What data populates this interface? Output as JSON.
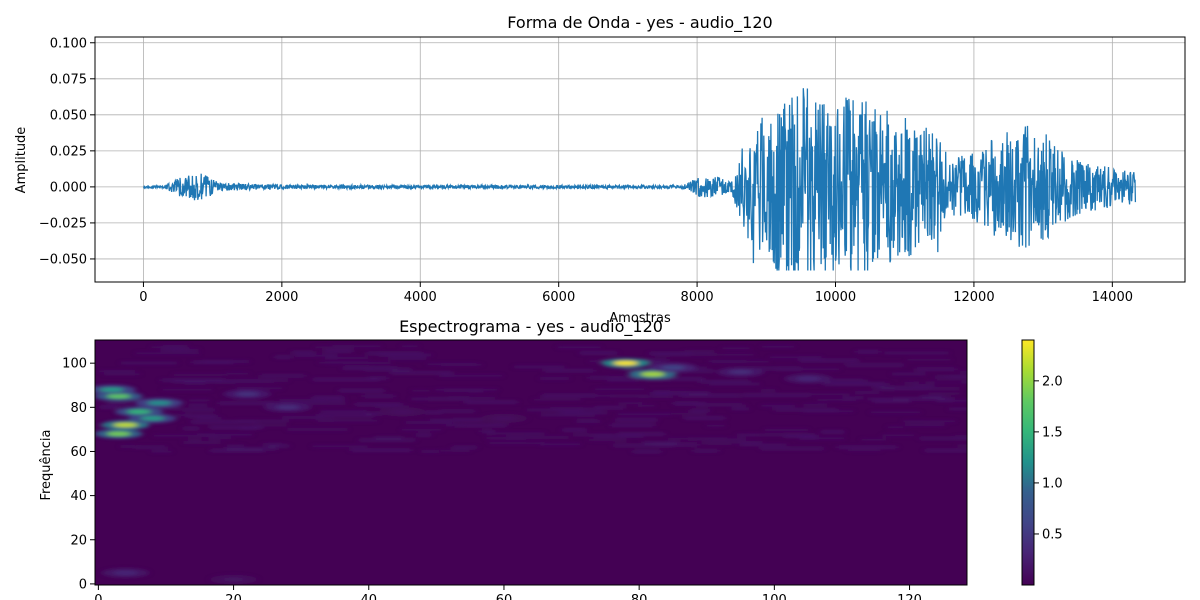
{
  "chart_data": [
    {
      "type": "line",
      "title": "Forma de Onda - yes - audio_120",
      "xlabel": "Amostras",
      "ylabel": "Amplitude",
      "xlim": [
        -700,
        15050
      ],
      "ylim": [
        -0.066,
        0.104
      ],
      "x_ticks": [
        0,
        2000,
        4000,
        6000,
        8000,
        10000,
        12000,
        14000
      ],
      "y_ticks": [
        -0.05,
        -0.025,
        0.0,
        0.025,
        0.05,
        0.075,
        0.1
      ],
      "x_tick_labels": [
        "0",
        "2000",
        "4000",
        "6000",
        "8000",
        "10000",
        "12000",
        "14000"
      ],
      "y_tick_labels": [
        "−0.050",
        "−0.025",
        "0.000",
        "0.025",
        "0.050",
        "0.075",
        "0.100"
      ],
      "grid": true,
      "line_color": "#1f77b4",
      "n_samples": 14336,
      "envelope": [
        [
          0,
          0.0008
        ],
        [
          300,
          0.0008
        ],
        [
          450,
          0.005
        ],
        [
          600,
          0.008
        ],
        [
          800,
          0.01
        ],
        [
          950,
          0.007
        ],
        [
          1100,
          0.003
        ],
        [
          1300,
          0.0025
        ],
        [
          2000,
          0.0015
        ],
        [
          4000,
          0.0012
        ],
        [
          6000,
          0.0012
        ],
        [
          7800,
          0.0012
        ],
        [
          8000,
          0.007
        ],
        [
          8200,
          0.008
        ],
        [
          8500,
          0.004
        ],
        [
          8700,
          0.035
        ],
        [
          8900,
          0.045
        ],
        [
          9100,
          0.06
        ],
        [
          9400,
          0.075
        ],
        [
          9700,
          0.065
        ],
        [
          10000,
          0.06
        ],
        [
          10300,
          0.065
        ],
        [
          10600,
          0.055
        ],
        [
          11000,
          0.05
        ],
        [
          11400,
          0.04
        ],
        [
          11700,
          0.02
        ],
        [
          12000,
          0.025
        ],
        [
          12300,
          0.035
        ],
        [
          12600,
          0.045
        ],
        [
          13000,
          0.04
        ],
        [
          13300,
          0.025
        ],
        [
          13600,
          0.018
        ],
        [
          14000,
          0.014
        ],
        [
          14335,
          0.012
        ]
      ]
    },
    {
      "type": "heatmap",
      "title": "Espectrograma - yes - audio_120",
      "xlabel": "",
      "ylabel": "Frequência",
      "xlim": [
        -0.5,
        128.5
      ],
      "ylim": [
        -0.5,
        110.5
      ],
      "x_ticks": [
        0,
        20,
        40,
        60,
        80,
        100,
        120
      ],
      "y_ticks": [
        0,
        20,
        40,
        60,
        80,
        100
      ],
      "x_tick_labels": [
        "0",
        "20",
        "40",
        "60",
        "80",
        "100",
        "120"
      ],
      "y_tick_labels": [
        "0",
        "20",
        "40",
        "60",
        "80",
        "100"
      ],
      "colorscale": "viridis",
      "colorbar_range": [
        0.0,
        2.4
      ],
      "colorbar_ticks": [
        0.5,
        1.0,
        1.5,
        2.0
      ],
      "colorbar_tick_labels": [
        "0.5",
        "1.0",
        "1.5",
        "2.0"
      ],
      "hotspots": [
        [
          3,
          85,
          1.8
        ],
        [
          4,
          72,
          2.2
        ],
        [
          3,
          68,
          1.9
        ],
        [
          6,
          78,
          1.5
        ],
        [
          9,
          82,
          1.2
        ],
        [
          8,
          75,
          1.3
        ],
        [
          2,
          88,
          1.3
        ],
        [
          22,
          86,
          0.45
        ],
        [
          28,
          80,
          0.4
        ],
        [
          78,
          100,
          2.4
        ],
        [
          82,
          95,
          2.1
        ],
        [
          85,
          98,
          0.6
        ],
        [
          95,
          96,
          0.4
        ],
        [
          105,
          93,
          0.35
        ],
        [
          4,
          5,
          0.35
        ],
        [
          20,
          2,
          0.15
        ],
        [
          60,
          75,
          0.12
        ],
        [
          45,
          78,
          0.12
        ]
      ]
    }
  ]
}
